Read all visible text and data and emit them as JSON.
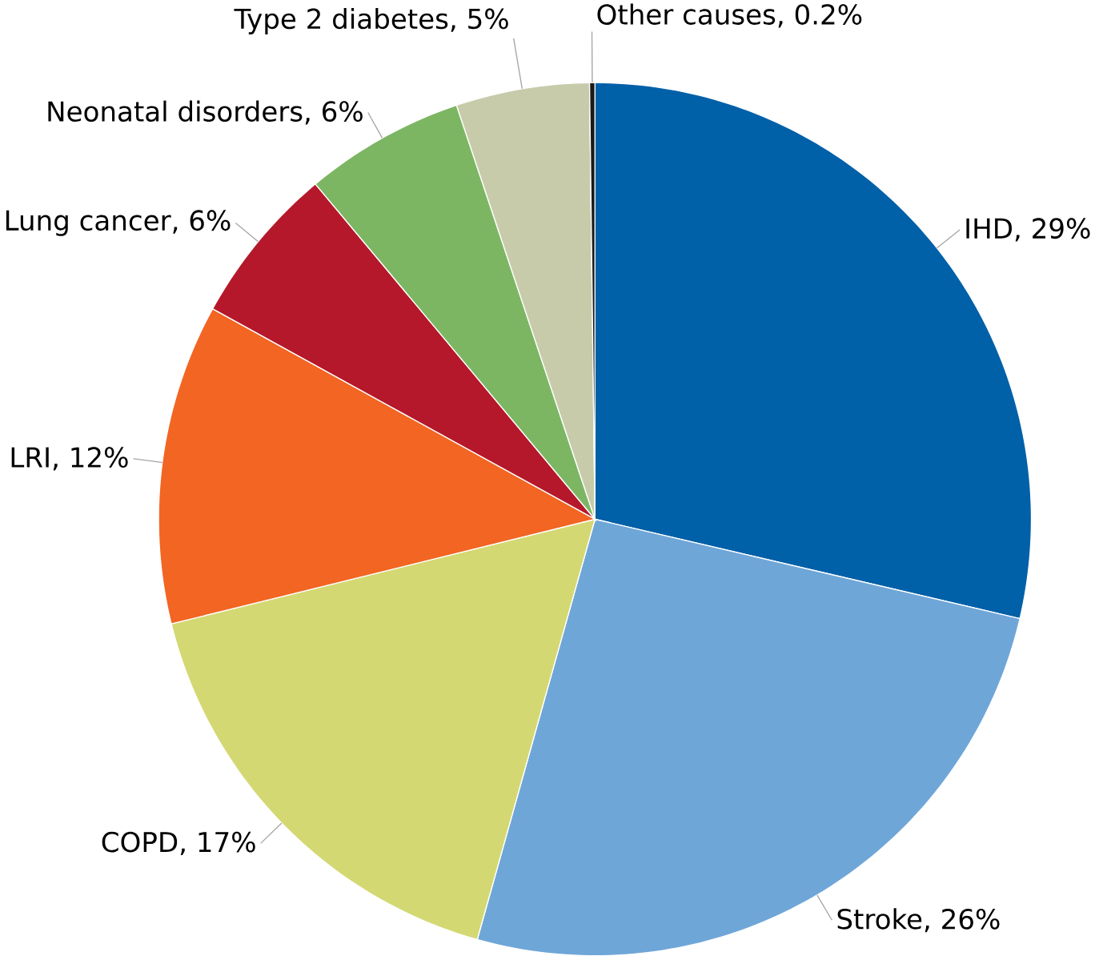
{
  "chart_data": {
    "type": "pie",
    "categories": [
      "IHD",
      "Stroke",
      "COPD",
      "LRI",
      "Lung cancer",
      "Neonatal disorders",
      "Type 2 diabetes",
      "Other causes"
    ],
    "values": [
      29,
      26,
      17,
      12,
      6,
      6,
      5,
      0.2
    ],
    "value_labels": [
      ", 29%",
      ", 26%",
      ", 17%",
      ", 12%",
      ", 6%",
      ", 6%",
      ", 5%",
      ", 0.2%"
    ],
    "colors": [
      "#0060a8",
      "#6fa6d8",
      "#d4d873",
      "#f26522",
      "#b5182a",
      "#7db663",
      "#c7cbaa",
      "#1a1a1a"
    ]
  }
}
